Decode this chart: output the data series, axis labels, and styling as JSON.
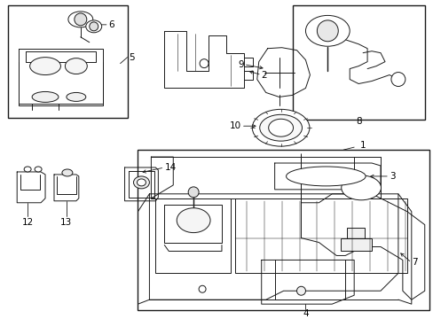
{
  "bg_color": "#ffffff",
  "line_color": "#1a1a1a",
  "fig_width": 4.89,
  "fig_height": 3.6,
  "dpi": 100,
  "fontsize": 7.5,
  "lw": 0.7
}
